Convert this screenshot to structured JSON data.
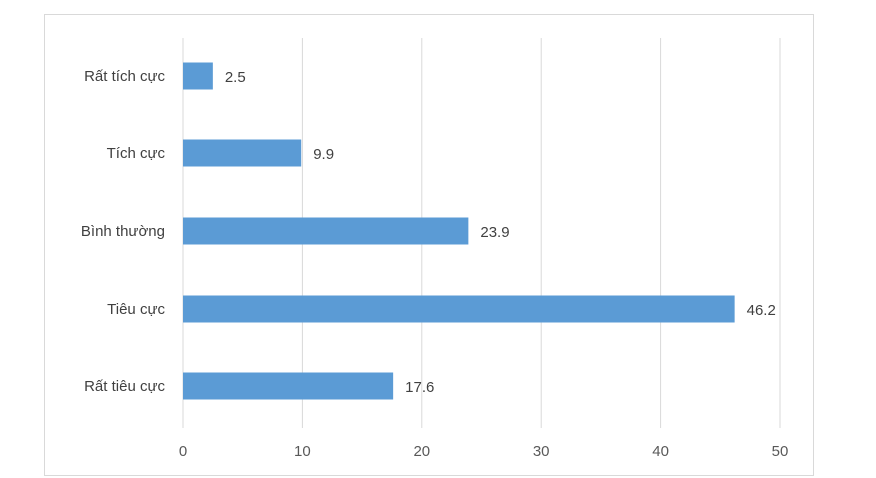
{
  "chart_data": {
    "type": "bar",
    "orientation": "horizontal",
    "categories": [
      "Rất tích cực",
      "Tích cực",
      "Bình thường",
      "Tiêu cực",
      "Rất tiêu cực"
    ],
    "values": [
      2.5,
      9.9,
      23.9,
      46.2,
      17.6
    ],
    "data_labels": [
      "2.5",
      "9.9",
      "23.9",
      "46.2",
      "17.6"
    ],
    "xlim": [
      0,
      50
    ],
    "x_ticks": [
      0,
      10,
      20,
      30,
      40,
      50
    ],
    "grid": "vertical",
    "legend": "none",
    "title": "",
    "xlabel": "",
    "ylabel": "",
    "bar_color": "#5b9bd5",
    "grid_color": "#d9d9d9"
  }
}
